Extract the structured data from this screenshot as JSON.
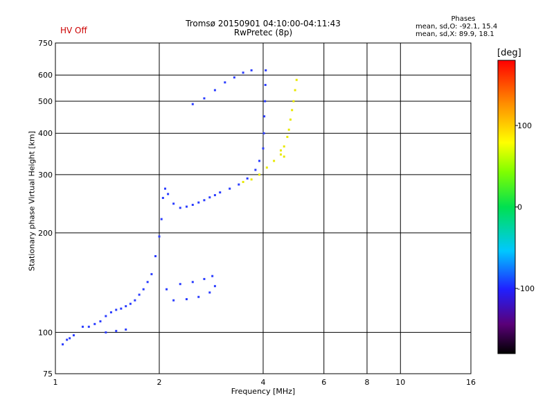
{
  "header": {
    "hv_status": "HV Off",
    "title_line1": "Tromsø 20150901 04:10:00-04:11:43",
    "title_line2": "RwPretec (8p)"
  },
  "phases": {
    "title": "Phases",
    "o_mode": "mean, sd,O: -92.1, 15.4",
    "x_mode": "mean, sd,X:  89.9, 18.1"
  },
  "colorbar": {
    "title": "[deg]",
    "ticks": [
      "100",
      "0",
      "-100"
    ],
    "tick_values": [
      100,
      0,
      -100
    ],
    "range": [
      -180,
      180
    ]
  },
  "chart_data": {
    "type": "scatter",
    "title": "Tromsø 20150901 04:10:00-04:11:43",
    "subtitle": "RwPretec (8p)",
    "xlabel": "Frequency [MHz]",
    "ylabel": "Stationary phase Virtual Height [km]",
    "xscale": "log",
    "yscale": "log",
    "xlim": [
      1,
      16
    ],
    "ylim": [
      75,
      750
    ],
    "grid": true,
    "x_ticks": [
      1,
      2,
      4,
      6,
      8,
      10,
      16
    ],
    "x_tick_labels": [
      "1",
      "2",
      "4",
      "6",
      "8",
      "10",
      "16"
    ],
    "y_ticks": [
      75,
      100,
      200,
      300,
      400,
      500,
      600,
      750
    ],
    "y_tick_labels": [
      "75",
      "100",
      "200",
      "300",
      "400",
      "500",
      "600",
      "750"
    ],
    "series": [
      {
        "mode": "O",
        "phase_deg": -95,
        "color": "#2a3cff",
        "points": [
          [
            1.05,
            92
          ],
          [
            1.08,
            95
          ],
          [
            1.1,
            96
          ],
          [
            1.13,
            98
          ],
          [
            1.2,
            104
          ],
          [
            1.25,
            104
          ],
          [
            1.3,
            106
          ],
          [
            1.35,
            108
          ],
          [
            1.4,
            112
          ],
          [
            1.45,
            115
          ],
          [
            1.5,
            117
          ],
          [
            1.55,
            118
          ],
          [
            1.6,
            120
          ],
          [
            1.65,
            122
          ],
          [
            1.7,
            125
          ],
          [
            1.75,
            130
          ],
          [
            1.8,
            135
          ],
          [
            1.85,
            142
          ],
          [
            1.9,
            150
          ],
          [
            1.95,
            170
          ],
          [
            2.0,
            195
          ],
          [
            2.03,
            220
          ],
          [
            2.05,
            255
          ],
          [
            2.08,
            272
          ],
          [
            2.12,
            262
          ],
          [
            2.2,
            245
          ],
          [
            2.3,
            238
          ],
          [
            2.4,
            240
          ],
          [
            2.5,
            243
          ],
          [
            2.6,
            247
          ],
          [
            2.7,
            251
          ],
          [
            2.8,
            256
          ],
          [
            2.9,
            260
          ],
          [
            3.0,
            265
          ],
          [
            3.2,
            272
          ],
          [
            3.4,
            280
          ],
          [
            3.6,
            292
          ],
          [
            3.8,
            310
          ],
          [
            3.9,
            330
          ],
          [
            4.0,
            360
          ],
          [
            4.02,
            400
          ],
          [
            4.03,
            450
          ],
          [
            4.05,
            500
          ],
          [
            4.06,
            560
          ],
          [
            4.07,
            620
          ],
          [
            2.2,
            125
          ],
          [
            2.4,
            126
          ],
          [
            2.6,
            128
          ],
          [
            2.8,
            132
          ],
          [
            2.9,
            138
          ],
          [
            2.1,
            135
          ],
          [
            2.3,
            140
          ],
          [
            2.5,
            142
          ],
          [
            2.7,
            145
          ],
          [
            2.85,
            148
          ],
          [
            1.4,
            100
          ],
          [
            1.5,
            101
          ],
          [
            1.6,
            102
          ],
          [
            2.5,
            490
          ],
          [
            2.9,
            540
          ],
          [
            3.1,
            570
          ],
          [
            3.3,
            590
          ],
          [
            3.5,
            610
          ],
          [
            3.7,
            620
          ],
          [
            2.7,
            510
          ]
        ]
      },
      {
        "mode": "X",
        "phase_deg": 95,
        "color": "#e8e800",
        "points": [
          [
            3.5,
            285
          ],
          [
            3.7,
            290
          ],
          [
            3.9,
            300
          ],
          [
            4.1,
            315
          ],
          [
            4.3,
            330
          ],
          [
            4.5,
            345
          ],
          [
            4.6,
            365
          ],
          [
            4.7,
            390
          ],
          [
            4.75,
            410
          ],
          [
            4.8,
            440
          ],
          [
            4.85,
            470
          ],
          [
            4.9,
            500
          ],
          [
            4.95,
            540
          ],
          [
            5.0,
            580
          ],
          [
            4.6,
            340
          ],
          [
            4.5,
            355
          ]
        ]
      }
    ]
  }
}
